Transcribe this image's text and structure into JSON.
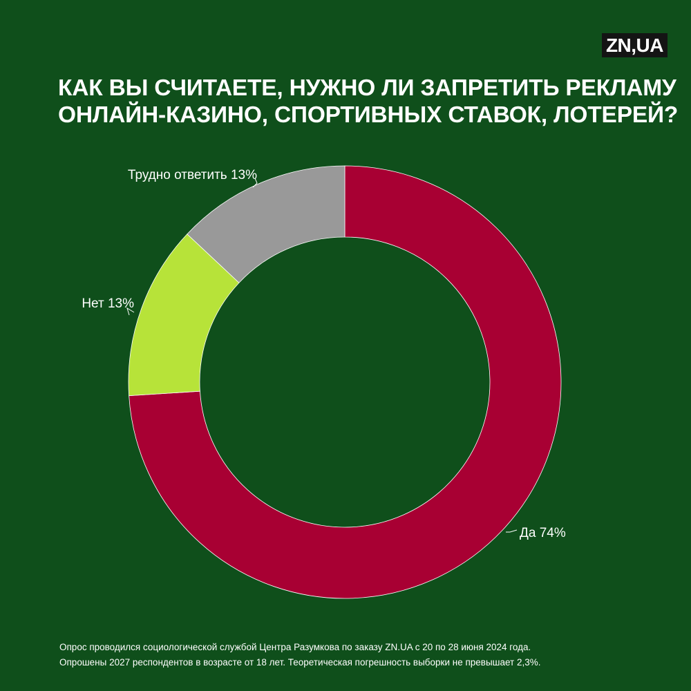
{
  "brand": {
    "logo_text": "ZN,UA"
  },
  "title_lines": [
    "КАК ВЫ СЧИТАЕТЕ, НУЖНО ЛИ ЗАПРЕТИТЬ РЕКЛАМУ",
    "ОНЛАЙН-КАЗИНО, СПОРТИВНЫХ СТАВОК, ЛОТЕРЕЙ?"
  ],
  "chart_data": {
    "type": "pie",
    "variant": "donut",
    "title": "КАК ВЫ СЧИТАЕТЕ, НУЖНО ЛИ ЗАПРЕТИТЬ РЕКЛАМУ ОНЛАЙН-КАЗИНО, СПОРТИВНЫХ СТАВОК, ЛОТЕРЕЙ?",
    "slices": [
      {
        "label": "Да 74%",
        "category": "Да",
        "value": 74,
        "color": "#a80033"
      },
      {
        "label": "Нет 13%",
        "category": "Нет",
        "value": 13,
        "color": "#b7e339"
      },
      {
        "label": "Трудно ответить 13%",
        "category": "Трудно ответить",
        "value": 13,
        "color": "#999999"
      }
    ],
    "start": "12 o'clock",
    "direction": "clockwise",
    "legend": "none"
  },
  "colors": {
    "background": "#0f4f1b",
    "yes": "#a80033",
    "no": "#b7e339",
    "hard_to_say": "#999999",
    "text": "#ffffff"
  },
  "footer_lines": [
    "Опрос проводился социологической службой Центра Разумкова по заказу ZN.UA с 20 по 28 июня 2024 года.",
    "Опрошены 2027 респондентов в возрасте от 18 лет. Теоретическая погрешность выборки не превышает 2,3%."
  ]
}
